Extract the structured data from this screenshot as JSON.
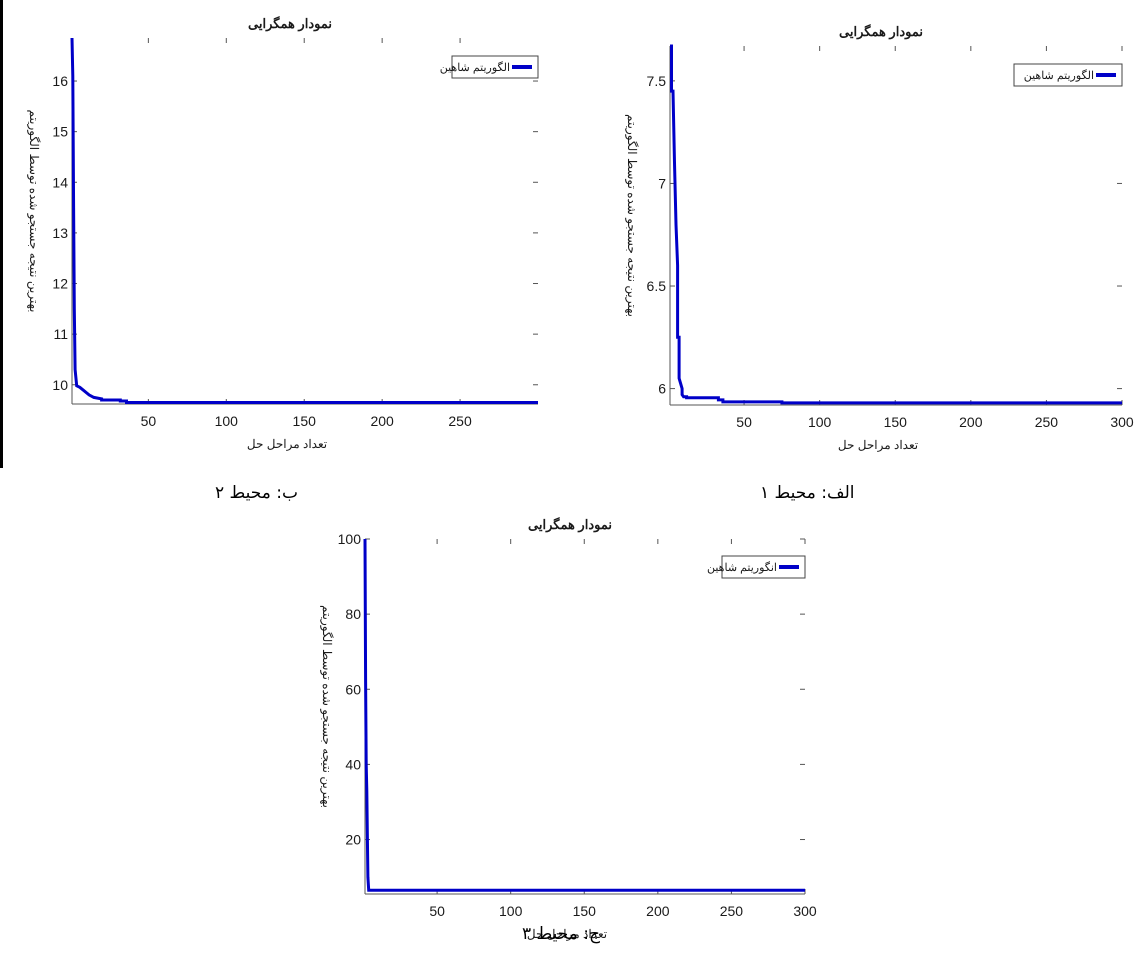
{
  "colors": {
    "series": "#0000c8",
    "axis": "#555555",
    "text": "#1a1a1a"
  },
  "captions": {
    "panel_a": "الف: محیط ۱",
    "panel_b": "ب: محیط ۲",
    "panel_c": "ج: محیط ۳"
  },
  "chart_data": [
    {
      "id": "a",
      "type": "line",
      "title": "نمودار همگرایی",
      "xlabel": "تعداد مراحل حل",
      "ylabel": "بهترین نتیجه جستجو شده توسط الگوریتم",
      "legend": [
        "الگوریتم شاهین"
      ],
      "legend_position": "top-right",
      "grid": false,
      "xlim": [
        1,
        300
      ],
      "ylim": [
        5.92,
        7.67
      ],
      "xticks": [
        50,
        100,
        150,
        200,
        250,
        300
      ],
      "xtick_labels": [
        "50",
        "100",
        "150",
        "200",
        "250",
        "300"
      ],
      "yticks": [
        6,
        6.5,
        7,
        7.5
      ],
      "ytick_labels": [
        "6",
        "6.5",
        "7",
        "7.5"
      ],
      "series": [
        {
          "x": [
            1,
            2,
            2,
            3,
            4,
            5,
            6,
            6,
            7,
            7,
            9,
            9,
            10,
            12,
            12,
            33,
            33,
            36,
            36,
            75,
            75,
            300
          ],
          "y": [
            7.67,
            7.67,
            7.45,
            7.45,
            7.1,
            6.8,
            6.6,
            6.25,
            6.25,
            6.05,
            6.0,
            5.97,
            5.96,
            5.96,
            5.955,
            5.955,
            5.945,
            5.945,
            5.935,
            5.935,
            5.93,
            5.93
          ]
        }
      ]
    },
    {
      "id": "b",
      "type": "line",
      "title": "نمودار همگرایی",
      "xlabel": "تعداد مراحل حل",
      "ylabel": "بهترین نتیجه جستجو شده توسط الگوریتم",
      "legend": [
        "الگوریتم شاهین"
      ],
      "legend_position": "top-right",
      "grid": false,
      "xlim": [
        1,
        300
      ],
      "ylim": [
        9.62,
        16.85
      ],
      "xticks": [
        50,
        100,
        150,
        200,
        250
      ],
      "xtick_labels": [
        "50",
        "100",
        "150",
        "200",
        "250"
      ],
      "yticks": [
        10,
        11,
        12,
        13,
        14,
        15,
        16
      ],
      "ytick_labels": [
        "10",
        "11",
        "12",
        "13",
        "14",
        "15",
        "16"
      ],
      "series": [
        {
          "x": [
            1,
            1.5,
            2,
            2.5,
            3,
            4,
            6,
            8,
            10,
            12,
            15,
            20,
            20,
            32,
            32,
            36,
            36,
            300
          ],
          "y": [
            16.85,
            16.1,
            13.5,
            11.5,
            10.3,
            9.98,
            9.95,
            9.9,
            9.85,
            9.8,
            9.75,
            9.72,
            9.7,
            9.7,
            9.68,
            9.68,
            9.65,
            9.65
          ]
        }
      ]
    },
    {
      "id": "c",
      "type": "line",
      "title": "نمودار همگرایی",
      "xlabel": "تعداد مراحل حل",
      "ylabel": "بهترین نتیجه جستجو شده توسط الگوریتم",
      "legend": [
        "انگوریتم شاهین"
      ],
      "legend_position": "top-right",
      "grid": false,
      "xlim": [
        1,
        300
      ],
      "ylim": [
        5.5,
        100
      ],
      "xticks": [
        50,
        100,
        150,
        200,
        250,
        300
      ],
      "xtick_labels": [
        "50",
        "100",
        "150",
        "200",
        "250",
        "300"
      ],
      "yticks": [
        20,
        40,
        60,
        80,
        100
      ],
      "ytick_labels": [
        "20",
        "40",
        "60",
        "80",
        "100"
      ],
      "series": [
        {
          "x": [
            1,
            1.4,
            1.8,
            2.2,
            2.6,
            3,
            3.5,
            300
          ],
          "y": [
            100,
            62,
            40,
            33,
            20,
            10,
            6.5,
            6.5
          ]
        }
      ]
    }
  ]
}
